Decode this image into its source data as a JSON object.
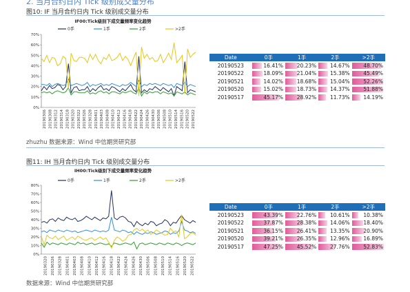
{
  "top_heading": "2. 当月合约日内 Tick 级别成交量分布",
  "figures": [
    {
      "caption": "图10:  IF 当月合约日内 Tick  级别成交量分布",
      "source": "zhuzhu 数据来源：Wind    中信期货研究部",
      "chart_data": {
        "type": "line",
        "title": "IF00:Tick级别下成交量频率变化趋势",
        "y_ticks": [
          "0%",
          "10%",
          "20%",
          "30%",
          "40%",
          "50%",
          "60%",
          "70%"
        ],
        "ylim": [
          0,
          70
        ],
        "x_labels": [
          "20190306",
          "20190308",
          "20190312",
          "20190314",
          "20190318",
          "20190320",
          "20190322",
          "20190326",
          "20190328",
          "20190401",
          "20190403",
          "20190408",
          "20190410",
          "20190412",
          "20190416",
          "20190418",
          "20190422",
          "20190424",
          "20190426",
          "20190430",
          "20190506",
          "20190508",
          "20190510",
          "20190514",
          "20190516",
          "20190520",
          "20190522"
        ],
        "legend": [
          "0手",
          "1手",
          "2手",
          ">2手"
        ],
        "colors": [
          "#1f2d5c",
          "#2e8fd6",
          "#2ca02c",
          "#e6c619"
        ],
        "series": [
          {
            "name": "0手",
            "values": [
              16,
              20,
              17,
              21,
              18,
              19,
              22,
              21,
              17,
              20,
              42,
              14,
              19,
              20,
              16,
              17,
              17,
              20,
              15,
              18,
              16,
              19,
              21,
              17,
              18,
              16,
              20,
              19,
              17,
              15,
              18,
              16,
              19,
              22,
              17,
              15,
              49,
              14,
              17,
              15,
              18,
              17,
              20,
              18,
              16,
              19,
              17,
              15,
              18,
              11,
              20,
              18,
              16,
              44,
              14,
              17,
              16,
              15
            ]
          },
          {
            "name": "1手",
            "values": [
              22,
              22,
              21,
              23,
              20,
              22,
              23,
              22,
              21,
              22,
              27,
              21,
              22,
              23,
              22,
              21,
              22,
              24,
              20,
              22,
              21,
              22,
              23,
              21,
              22,
              21,
              23,
              22,
              21,
              20,
              22,
              21,
              22,
              24,
              22,
              20,
              26,
              20,
              22,
              21,
              23,
              22,
              23,
              22,
              21,
              23,
              22,
              21,
              22,
              19,
              23,
              22,
              21,
              24,
              20,
              22,
              21,
              20
            ]
          },
          {
            "name": "2手",
            "values": [
              14,
              15,
              14,
              15,
              13,
              15,
              16,
              15,
              14,
              15,
              19,
              12,
              15,
              15,
              14,
              14,
              14,
              16,
              13,
              14,
              13,
              15,
              16,
              14,
              15,
              13,
              15,
              15,
              14,
              13,
              15,
              14,
              15,
              16,
              14,
              13,
              19,
              11,
              15,
              13,
              15,
              14,
              15,
              15,
              13,
              15,
              14,
              13,
              14,
              11,
              15,
              14,
              13,
              15,
              12,
              14,
              13,
              12
            ]
          },
          {
            "name": ">2手",
            "values": [
              47,
              44,
              50,
              43,
              48,
              47,
              40,
              42,
              49,
              47,
              18,
              52,
              45,
              44,
              48,
              48,
              47,
              43,
              51,
              46,
              51,
              45,
              42,
              48,
              46,
              51,
              45,
              46,
              48,
              52,
              45,
              49,
              46,
              40,
              47,
              53,
              11,
              58,
              47,
              51,
              46,
              48,
              44,
              45,
              51,
              43,
              47,
              52,
              46,
              62,
              43,
              46,
              50,
              13,
              56,
              48,
              51,
              53
            ]
          }
        ]
      },
      "table": {
        "headers": [
          "Date",
          "0手",
          "1手",
          "2手",
          ">2手"
        ],
        "rows": [
          [
            "20190523",
            "16.41%",
            "20.23%",
            "14.67%",
            "48.70%"
          ],
          [
            "20190522",
            "18.09%",
            "21.04%",
            "15.38%",
            "45.49%"
          ],
          [
            "20190521",
            "14.02%",
            "18.68%",
            "15.04%",
            "52.26%"
          ],
          [
            "20190520",
            "15.02%",
            "18.73%",
            "14.37%",
            "51.88%"
          ],
          [
            "20190517",
            "45.17%",
            "28.92%",
            "11.73%",
            "14.19%"
          ]
        ]
      }
    },
    {
      "caption": "图11:  IH 当月合约日内 Tick  级别成交量分布",
      "source": "数据来源：Wind    中信期货研究部",
      "chart_data": {
        "type": "line",
        "title": "IH00:Tick级别下成交量频率变化趋势",
        "y_ticks": [
          "0%",
          "10%",
          "20%",
          "30%",
          "40%",
          "50%",
          "60%",
          "70%",
          "80%"
        ],
        "ylim": [
          0,
          80
        ],
        "x_labels": [
          "20190320",
          "20190326",
          "20190328",
          "20190401",
          "20190403",
          "20190408",
          "20190410",
          "20190412",
          "20190416",
          "20190418",
          "20190422",
          "20190424",
          "20190426",
          "20190430",
          "20190506",
          "20190508",
          "20190510",
          "20190514",
          "20190516",
          "20190520",
          "20190522"
        ],
        "legend": [
          "0手",
          "1手",
          "2手",
          ">2手"
        ],
        "colors": [
          "#1f2d5c",
          "#2e8fd6",
          "#2ca02c",
          "#e6c619"
        ],
        "series": [
          {
            "name": "0手",
            "values": [
              37,
              38,
              36,
              40,
              41,
              38,
              42,
              40,
              39,
              43,
              41,
              40,
              42,
              38,
              39,
              41,
              44,
              42,
              40,
              43,
              41,
              39,
              42,
              41,
              44,
              74,
              42,
              40,
              43,
              44,
              42,
              38,
              37,
              32,
              38,
              35,
              33,
              36,
              34,
              38,
              37,
              33,
              35,
              36,
              40,
              38,
              33,
              37,
              36,
              41,
              45,
              40,
              38,
              36,
              39,
              37
            ]
          },
          {
            "name": "1手",
            "values": [
              26,
              27,
              25,
              28,
              27,
              26,
              28,
              27,
              26,
              28,
              27,
              26,
              27,
              25,
              26,
              27,
              28,
              27,
              26,
              28,
              27,
              26,
              27,
              26,
              28,
              43,
              28,
              27,
              26,
              28,
              27,
              25,
              26,
              23,
              26,
              24,
              23,
              25,
              24,
              26,
              25,
              23,
              24,
              25,
              27,
              26,
              23,
              25,
              24,
              27,
              38,
              28,
              27,
              25,
              26,
              24
            ]
          },
          {
            "name": "2手",
            "values": [
              13,
              8,
              14,
              11,
              13,
              12,
              11,
              13,
              12,
              11,
              13,
              12,
              11,
              14,
              12,
              13,
              11,
              12,
              13,
              11,
              12,
              13,
              12,
              11,
              12,
              9,
              13,
              12,
              11,
              12,
              13,
              12,
              11,
              14,
              6,
              12,
              13,
              11,
              12,
              13,
              12,
              11,
              13,
              12,
              11,
              13,
              12,
              11,
              13,
              12,
              10,
              12,
              13,
              12,
              11,
              13
            ]
          },
          {
            "name": ">2手",
            "values": [
              20,
              11,
              22,
              19,
              18,
              21,
              17,
              19,
              21,
              16,
              18,
              20,
              17,
              21,
              19,
              17,
              16,
              18,
              19,
              16,
              18,
              20,
              17,
              19,
              14,
              7,
              16,
              20,
              18,
              15,
              17,
              22,
              23,
              28,
              30,
              27,
              29,
              26,
              28,
              23,
              25,
              28,
              26,
              24,
              22,
              23,
              30,
              26,
              27,
              20,
              46,
              18,
              20,
              24,
              25,
              22
            ]
          }
        ]
      },
      "table": {
        "headers": [
          "Date",
          "0手",
          "1手",
          "2手",
          ">2手"
        ],
        "rows": [
          [
            "20190523",
            "43.39%",
            "22.76%",
            "10.61%",
            "10.38%"
          ],
          [
            "20190522",
            "37.87%",
            "28.38%",
            "14.06%",
            "18.40%"
          ],
          [
            "20190521",
            "36.15%",
            "26.41%",
            "13.35%",
            "20.90%"
          ],
          [
            "20190520",
            "39.21%",
            "26.35%",
            "12.96%",
            "16.89%"
          ],
          [
            "20190517",
            "47.25%",
            "45.52%",
            "27.76%",
            "52.83%"
          ]
        ]
      }
    }
  ]
}
